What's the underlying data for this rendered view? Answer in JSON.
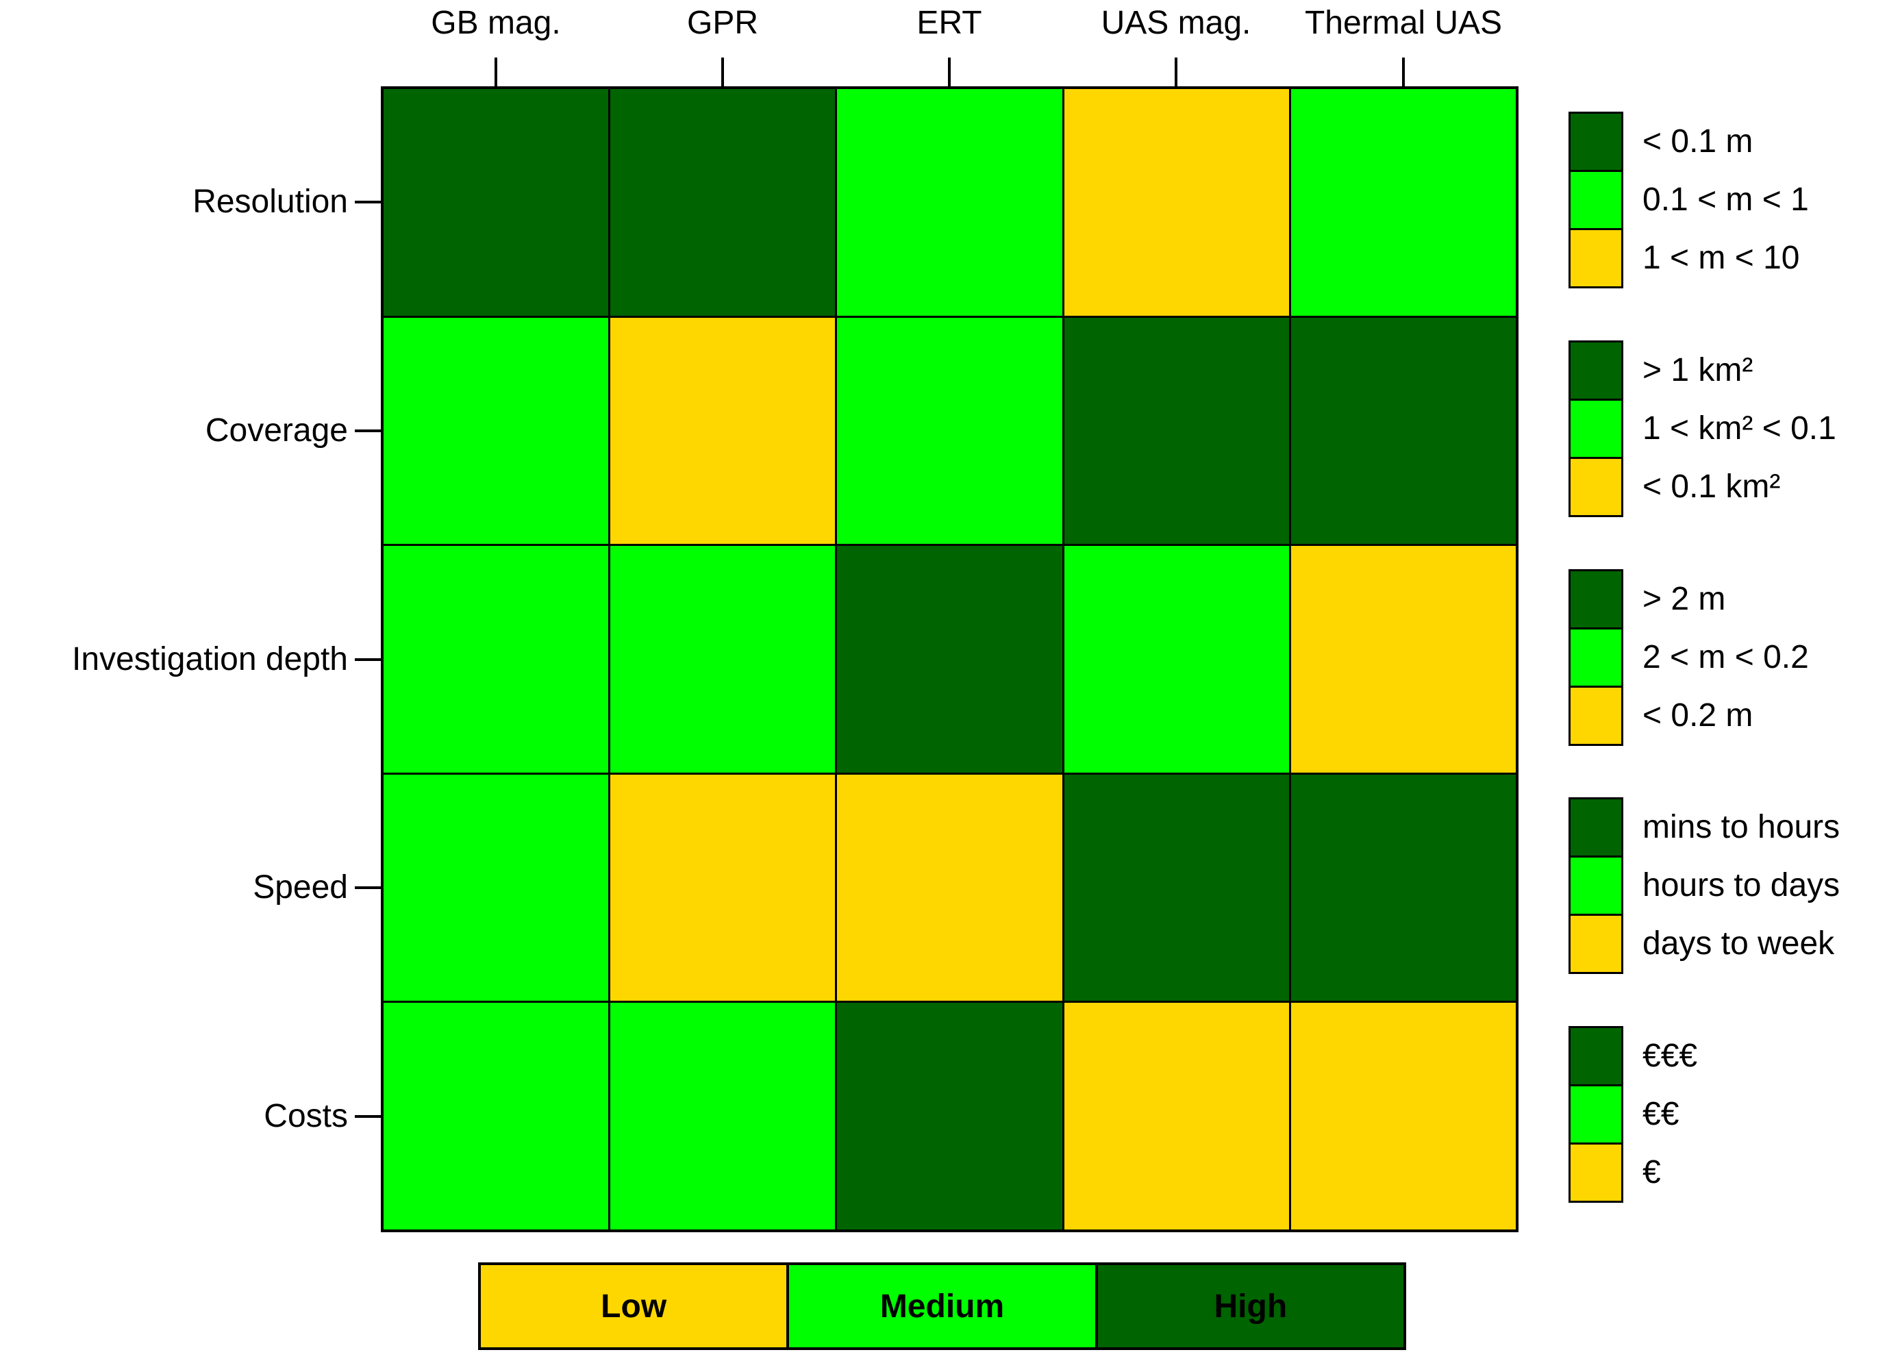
{
  "colors": {
    "high": "#006400",
    "medium": "#00FF00",
    "low": "#FFD700",
    "border": "#000000",
    "background": "#FFFFFF"
  },
  "chart_data": {
    "type": "heatmap",
    "columns": [
      "GB mag.",
      "GPR",
      "ERT",
      "UAS mag.",
      "Thermal UAS"
    ],
    "rows": [
      {
        "label": "Resolution",
        "levels": [
          "high",
          "high",
          "medium",
          "low",
          "medium"
        ]
      },
      {
        "label": "Coverage",
        "levels": [
          "medium",
          "low",
          "medium",
          "high",
          "high"
        ]
      },
      {
        "label": "Investigation depth",
        "levels": [
          "medium",
          "medium",
          "high",
          "medium",
          "low"
        ]
      },
      {
        "label": "Speed",
        "levels": [
          "medium",
          "low",
          "low",
          "high",
          "high"
        ]
      },
      {
        "label": "Costs",
        "levels": [
          "medium",
          "medium",
          "high",
          "low",
          "low"
        ]
      }
    ],
    "level_names": {
      "high": "High",
      "medium": "Medium",
      "low": "Low"
    },
    "row_legends": [
      {
        "row": "Resolution",
        "items": [
          {
            "level": "high",
            "label": "< 0.1 m"
          },
          {
            "level": "medium",
            "label": "0.1 < m < 1"
          },
          {
            "level": "low",
            "label": "1 < m < 10"
          }
        ]
      },
      {
        "row": "Coverage",
        "items": [
          {
            "level": "high",
            "label": "> 1 km²"
          },
          {
            "level": "medium",
            "label": "1 < km² < 0.1"
          },
          {
            "level": "low",
            "label": "< 0.1 km²"
          }
        ]
      },
      {
        "row": "Investigation depth",
        "items": [
          {
            "level": "high",
            "label": "> 2 m"
          },
          {
            "level": "medium",
            "label": "2 < m < 0.2"
          },
          {
            "level": "low",
            "label": "< 0.2 m"
          }
        ]
      },
      {
        "row": "Speed",
        "items": [
          {
            "level": "high",
            "label": "mins to hours"
          },
          {
            "level": "medium",
            "label": "hours to days"
          },
          {
            "level": "low",
            "label": "days to week"
          }
        ]
      },
      {
        "row": "Costs",
        "items": [
          {
            "level": "high",
            "label": "€€€"
          },
          {
            "level": "medium",
            "label": "€€"
          },
          {
            "level": "low",
            "label": "€"
          }
        ]
      }
    ],
    "footer_legend": [
      {
        "level": "low",
        "label": "Low"
      },
      {
        "level": "medium",
        "label": "Medium"
      },
      {
        "level": "high",
        "label": "High"
      }
    ]
  }
}
